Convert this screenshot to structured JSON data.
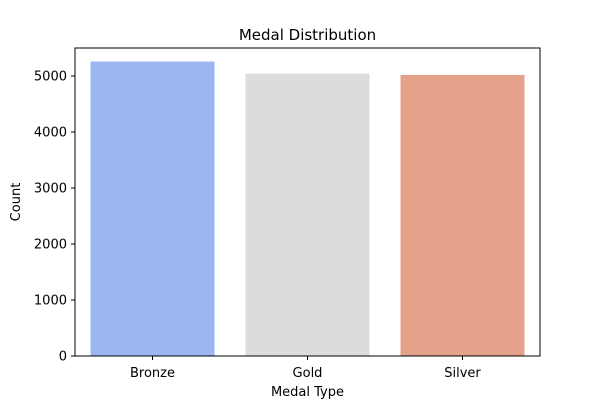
{
  "chart_data": {
    "type": "bar",
    "title": "Medal Distribution",
    "xlabel": "Medal Type",
    "ylabel": "Count",
    "categories": [
      "Bronze",
      "Gold",
      "Silver"
    ],
    "values": [
      5258,
      5042,
      5020
    ],
    "colors": [
      "#9bb6f0",
      "#dcdcdc",
      "#e5a28a"
    ],
    "ylim": [
      0,
      5500
    ],
    "yticks": [
      0,
      1000,
      2000,
      3000,
      4000,
      5000
    ],
    "grid": false,
    "legend": "none"
  }
}
